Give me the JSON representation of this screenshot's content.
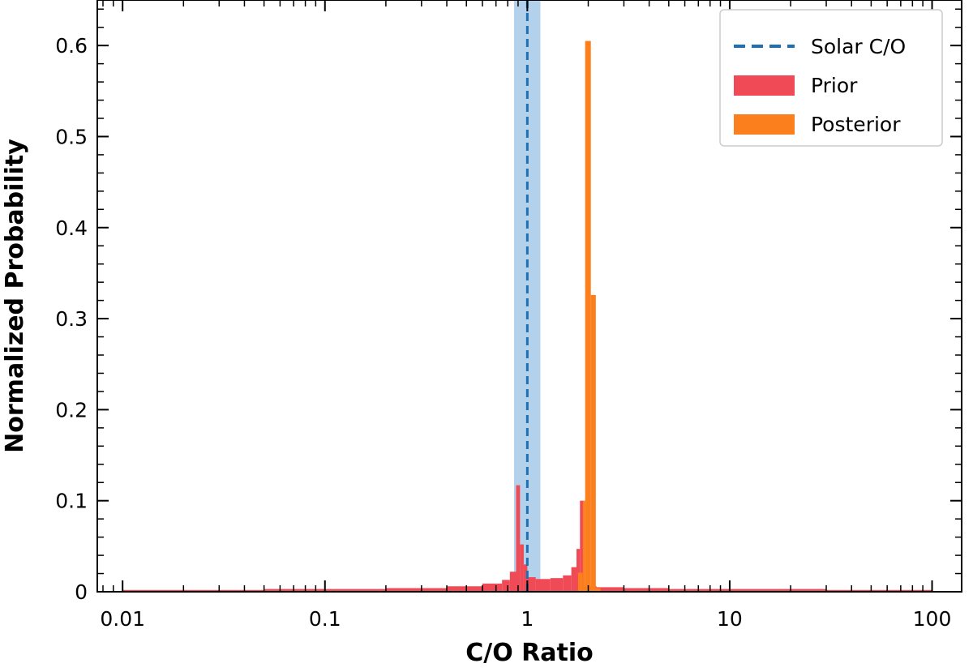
{
  "chart_data": {
    "type": "bar",
    "title": "",
    "xlabel": "C/O Ratio",
    "ylabel": "Normalized Probability",
    "x_scale": "log",
    "xlim": [
      0.0075,
      140
    ],
    "ylim": [
      0,
      0.65
    ],
    "grid": false,
    "legend_position": "top-right",
    "x_ticks": [
      {
        "value": 0.01,
        "label": "0.01"
      },
      {
        "value": 0.1,
        "label": "0.1"
      },
      {
        "value": 1,
        "label": "1"
      },
      {
        "value": 10,
        "label": "10"
      },
      {
        "value": 100,
        "label": "100"
      }
    ],
    "y_ticks": [
      {
        "value": 0,
        "label": "0"
      },
      {
        "value": 0.1,
        "label": "0.1"
      },
      {
        "value": 0.2,
        "label": "0.2"
      },
      {
        "value": 0.3,
        "label": "0.3"
      },
      {
        "value": 0.4,
        "label": "0.4"
      },
      {
        "value": 0.5,
        "label": "0.5"
      },
      {
        "value": 0.6,
        "label": "0.6"
      }
    ],
    "solar": {
      "name": "Solar C/O",
      "value": 1.0,
      "band": [
        0.86,
        1.16
      ],
      "color": "#1f6fb4",
      "band_color": "#b3d1ea"
    },
    "series": [
      {
        "name": "Prior",
        "color": "#ef4a55",
        "bins": [
          {
            "x0": 0.01,
            "x1": 0.02,
            "y": 0.002
          },
          {
            "x0": 0.02,
            "x1": 0.05,
            "y": 0.002
          },
          {
            "x0": 0.05,
            "x1": 0.1,
            "y": 0.003
          },
          {
            "x0": 0.1,
            "x1": 0.2,
            "y": 0.003
          },
          {
            "x0": 0.2,
            "x1": 0.4,
            "y": 0.004
          },
          {
            "x0": 0.4,
            "x1": 0.6,
            "y": 0.006
          },
          {
            "x0": 0.6,
            "x1": 0.75,
            "y": 0.009
          },
          {
            "x0": 0.75,
            "x1": 0.82,
            "y": 0.013
          },
          {
            "x0": 0.82,
            "x1": 0.88,
            "y": 0.022
          },
          {
            "x0": 0.88,
            "x1": 0.92,
            "y": 0.117
          },
          {
            "x0": 0.92,
            "x1": 0.96,
            "y": 0.052
          },
          {
            "x0": 0.96,
            "x1": 1.0,
            "y": 0.03
          },
          {
            "x0": 1.0,
            "x1": 1.1,
            "y": 0.016
          },
          {
            "x0": 1.1,
            "x1": 1.3,
            "y": 0.014
          },
          {
            "x0": 1.3,
            "x1": 1.5,
            "y": 0.015
          },
          {
            "x0": 1.5,
            "x1": 1.65,
            "y": 0.018
          },
          {
            "x0": 1.65,
            "x1": 1.75,
            "y": 0.027
          },
          {
            "x0": 1.75,
            "x1": 1.82,
            "y": 0.047
          },
          {
            "x0": 1.82,
            "x1": 1.9,
            "y": 0.1
          },
          {
            "x0": 1.9,
            "x1": 2.2,
            "y": 0.006
          },
          {
            "x0": 2.2,
            "x1": 3.0,
            "y": 0.005
          },
          {
            "x0": 3.0,
            "x1": 5.0,
            "y": 0.004
          },
          {
            "x0": 5.0,
            "x1": 10.0,
            "y": 0.003
          },
          {
            "x0": 10.0,
            "x1": 30.0,
            "y": 0.003
          },
          {
            "x0": 30.0,
            "x1": 100.0,
            "y": 0.002
          }
        ]
      },
      {
        "name": "Posterior",
        "color": "#fb7f1d",
        "bins": [
          {
            "x0": 1.78,
            "x1": 1.88,
            "y": 0.021
          },
          {
            "x0": 1.88,
            "x1": 1.93,
            "y": 0.1
          },
          {
            "x0": 1.93,
            "x1": 2.06,
            "y": 0.605
          },
          {
            "x0": 2.06,
            "x1": 2.18,
            "y": 0.326
          },
          {
            "x0": 2.18,
            "x1": 2.3,
            "y": 0.004
          }
        ]
      }
    ]
  }
}
